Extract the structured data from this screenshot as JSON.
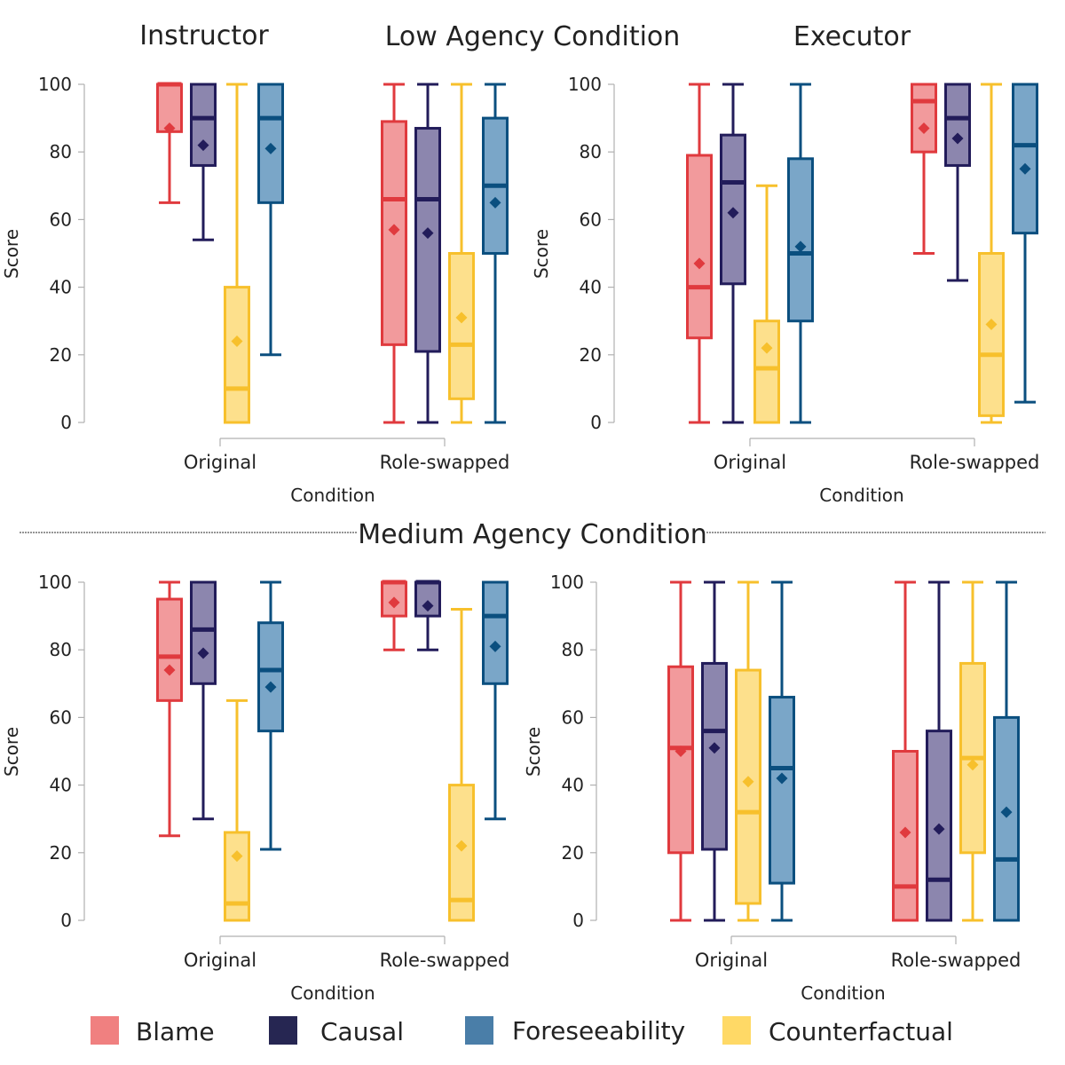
{
  "headers": {
    "instructor": "Instructor",
    "low_agency": "Low Agency Condition",
    "executor": "Executor",
    "medium_agency": "Medium Agency Condition"
  },
  "legend": [
    {
      "label": "Blame",
      "color": "#f08080"
    },
    {
      "label": "Causal",
      "color": "#262652"
    },
    {
      "label": "Foreseeability",
      "color": "#4a7ea8"
    },
    {
      "label": "Counterfactual",
      "color": "#ffd966"
    }
  ],
  "series_colors": {
    "Blame": {
      "stroke": "#e03a3e",
      "fill": "#f29a9c"
    },
    "Causal": {
      "stroke": "#221c5a",
      "fill": "#8c86ae"
    },
    "Counterfactual": {
      "stroke": "#f7c02c",
      "fill": "#fde08c"
    },
    "Foreseeability": {
      "stroke": "#0b4f7f",
      "fill": "#7aa6c8"
    }
  },
  "chart_data": [
    {
      "id": "low-instructor",
      "type": "box",
      "xlabel": "Condition",
      "ylabel": "Score",
      "ylim": [
        0,
        100
      ],
      "yticks": [
        0,
        20,
        40,
        60,
        80,
        100
      ],
      "categories": [
        "Original",
        "Role-swapped"
      ],
      "series": [
        "Blame",
        "Causal",
        "Counterfactual",
        "Foreseeability"
      ],
      "boxes": [
        {
          "category": "Original",
          "series": "Blame",
          "min": 65,
          "q1": 86,
          "median": 100,
          "q3": 100,
          "max": 100,
          "mean": 87
        },
        {
          "category": "Original",
          "series": "Causal",
          "min": 54,
          "q1": 76,
          "median": 90,
          "q3": 100,
          "max": 100,
          "mean": 82
        },
        {
          "category": "Original",
          "series": "Counterfactual",
          "min": 0,
          "q1": 0,
          "median": 10,
          "q3": 40,
          "max": 100,
          "mean": 24
        },
        {
          "category": "Original",
          "series": "Foreseeability",
          "min": 20,
          "q1": 65,
          "median": 90,
          "q3": 100,
          "max": 100,
          "mean": 81
        },
        {
          "category": "Role-swapped",
          "series": "Blame",
          "min": 0,
          "q1": 23,
          "median": 66,
          "q3": 89,
          "max": 100,
          "mean": 57
        },
        {
          "category": "Role-swapped",
          "series": "Causal",
          "min": 0,
          "q1": 21,
          "median": 66,
          "q3": 87,
          "max": 100,
          "mean": 56
        },
        {
          "category": "Role-swapped",
          "series": "Counterfactual",
          "min": 0,
          "q1": 7,
          "median": 23,
          "q3": 50,
          "max": 100,
          "mean": 31
        },
        {
          "category": "Role-swapped",
          "series": "Foreseeability",
          "min": 0,
          "q1": 50,
          "median": 70,
          "q3": 90,
          "max": 100,
          "mean": 65
        }
      ]
    },
    {
      "id": "low-executor",
      "type": "box",
      "xlabel": "Condition",
      "ylabel": "Score",
      "ylim": [
        0,
        100
      ],
      "yticks": [
        0,
        20,
        40,
        60,
        80,
        100
      ],
      "categories": [
        "Original",
        "Role-swapped"
      ],
      "series": [
        "Blame",
        "Causal",
        "Counterfactual",
        "Foreseeability"
      ],
      "boxes": [
        {
          "category": "Original",
          "series": "Blame",
          "min": 0,
          "q1": 25,
          "median": 40,
          "q3": 79,
          "max": 100,
          "mean": 47
        },
        {
          "category": "Original",
          "series": "Causal",
          "min": 0,
          "q1": 41,
          "median": 71,
          "q3": 85,
          "max": 100,
          "mean": 62
        },
        {
          "category": "Original",
          "series": "Counterfactual",
          "min": 0,
          "q1": 0,
          "median": 16,
          "q3": 30,
          "max": 70,
          "mean": 22
        },
        {
          "category": "Original",
          "series": "Foreseeability",
          "min": 0,
          "q1": 30,
          "median": 50,
          "q3": 78,
          "max": 100,
          "mean": 52
        },
        {
          "category": "Role-swapped",
          "series": "Blame",
          "min": 50,
          "q1": 80,
          "median": 95,
          "q3": 100,
          "max": 100,
          "mean": 87
        },
        {
          "category": "Role-swapped",
          "series": "Causal",
          "min": 42,
          "q1": 76,
          "median": 90,
          "q3": 100,
          "max": 100,
          "mean": 84
        },
        {
          "category": "Role-swapped",
          "series": "Counterfactual",
          "min": 0,
          "q1": 2,
          "median": 20,
          "q3": 50,
          "max": 100,
          "mean": 29
        },
        {
          "category": "Role-swapped",
          "series": "Foreseeability",
          "min": 6,
          "q1": 56,
          "median": 82,
          "q3": 100,
          "max": 100,
          "mean": 75
        }
      ]
    },
    {
      "id": "medium-left",
      "type": "box",
      "xlabel": "Condition",
      "ylabel": "Score",
      "ylim": [
        0,
        100
      ],
      "yticks": [
        0,
        20,
        40,
        60,
        80,
        100
      ],
      "categories": [
        "Original",
        "Role-swapped"
      ],
      "series": [
        "Blame",
        "Causal",
        "Counterfactual",
        "Foreseeability"
      ],
      "boxes": [
        {
          "category": "Original",
          "series": "Blame",
          "min": 25,
          "q1": 65,
          "median": 78,
          "q3": 95,
          "max": 100,
          "mean": 74
        },
        {
          "category": "Original",
          "series": "Causal",
          "min": 30,
          "q1": 70,
          "median": 86,
          "q3": 100,
          "max": 100,
          "mean": 79
        },
        {
          "category": "Original",
          "series": "Counterfactual",
          "min": 0,
          "q1": 0,
          "median": 5,
          "q3": 26,
          "max": 65,
          "mean": 19
        },
        {
          "category": "Original",
          "series": "Foreseeability",
          "min": 21,
          "q1": 56,
          "median": 74,
          "q3": 88,
          "max": 100,
          "mean": 69
        },
        {
          "category": "Role-swapped",
          "series": "Blame",
          "min": 80,
          "q1": 90,
          "median": 100,
          "q3": 100,
          "max": 100,
          "mean": 94
        },
        {
          "category": "Role-swapped",
          "series": "Causal",
          "min": 80,
          "q1": 90,
          "median": 100,
          "q3": 100,
          "max": 100,
          "mean": 93
        },
        {
          "category": "Role-swapped",
          "series": "Counterfactual",
          "min": 0,
          "q1": 0,
          "median": 6,
          "q3": 40,
          "max": 92,
          "mean": 22
        },
        {
          "category": "Role-swapped",
          "series": "Foreseeability",
          "min": 30,
          "q1": 70,
          "median": 90,
          "q3": 100,
          "max": 100,
          "mean": 81
        }
      ]
    },
    {
      "id": "medium-right",
      "type": "box",
      "xlabel": "Condition",
      "ylabel": "Score",
      "ylim": [
        0,
        100
      ],
      "yticks": [
        0,
        20,
        40,
        60,
        80,
        100
      ],
      "categories": [
        "Original",
        "Role-swapped"
      ],
      "series": [
        "Blame",
        "Causal",
        "Counterfactual",
        "Foreseeability"
      ],
      "boxes": [
        {
          "category": "Original",
          "series": "Blame",
          "min": 0,
          "q1": 20,
          "median": 51,
          "q3": 75,
          "max": 100,
          "mean": 50
        },
        {
          "category": "Original",
          "series": "Causal",
          "min": 0,
          "q1": 21,
          "median": 56,
          "q3": 76,
          "max": 100,
          "mean": 51
        },
        {
          "category": "Original",
          "series": "Counterfactual",
          "min": 0,
          "q1": 5,
          "median": 32,
          "q3": 74,
          "max": 100,
          "mean": 41
        },
        {
          "category": "Original",
          "series": "Foreseeability",
          "min": 0,
          "q1": 11,
          "median": 45,
          "q3": 66,
          "max": 100,
          "mean": 42
        },
        {
          "category": "Role-swapped",
          "series": "Blame",
          "min": 0,
          "q1": 0,
          "median": 10,
          "q3": 50,
          "max": 100,
          "mean": 26
        },
        {
          "category": "Role-swapped",
          "series": "Causal",
          "min": 0,
          "q1": 0,
          "median": 12,
          "q3": 56,
          "max": 100,
          "mean": 27
        },
        {
          "category": "Role-swapped",
          "series": "Counterfactual",
          "min": 0,
          "q1": 20,
          "median": 48,
          "q3": 76,
          "max": 100,
          "mean": 46
        },
        {
          "category": "Role-swapped",
          "series": "Foreseeability",
          "min": 0,
          "q1": 0,
          "median": 18,
          "q3": 60,
          "max": 100,
          "mean": 32
        }
      ]
    }
  ]
}
